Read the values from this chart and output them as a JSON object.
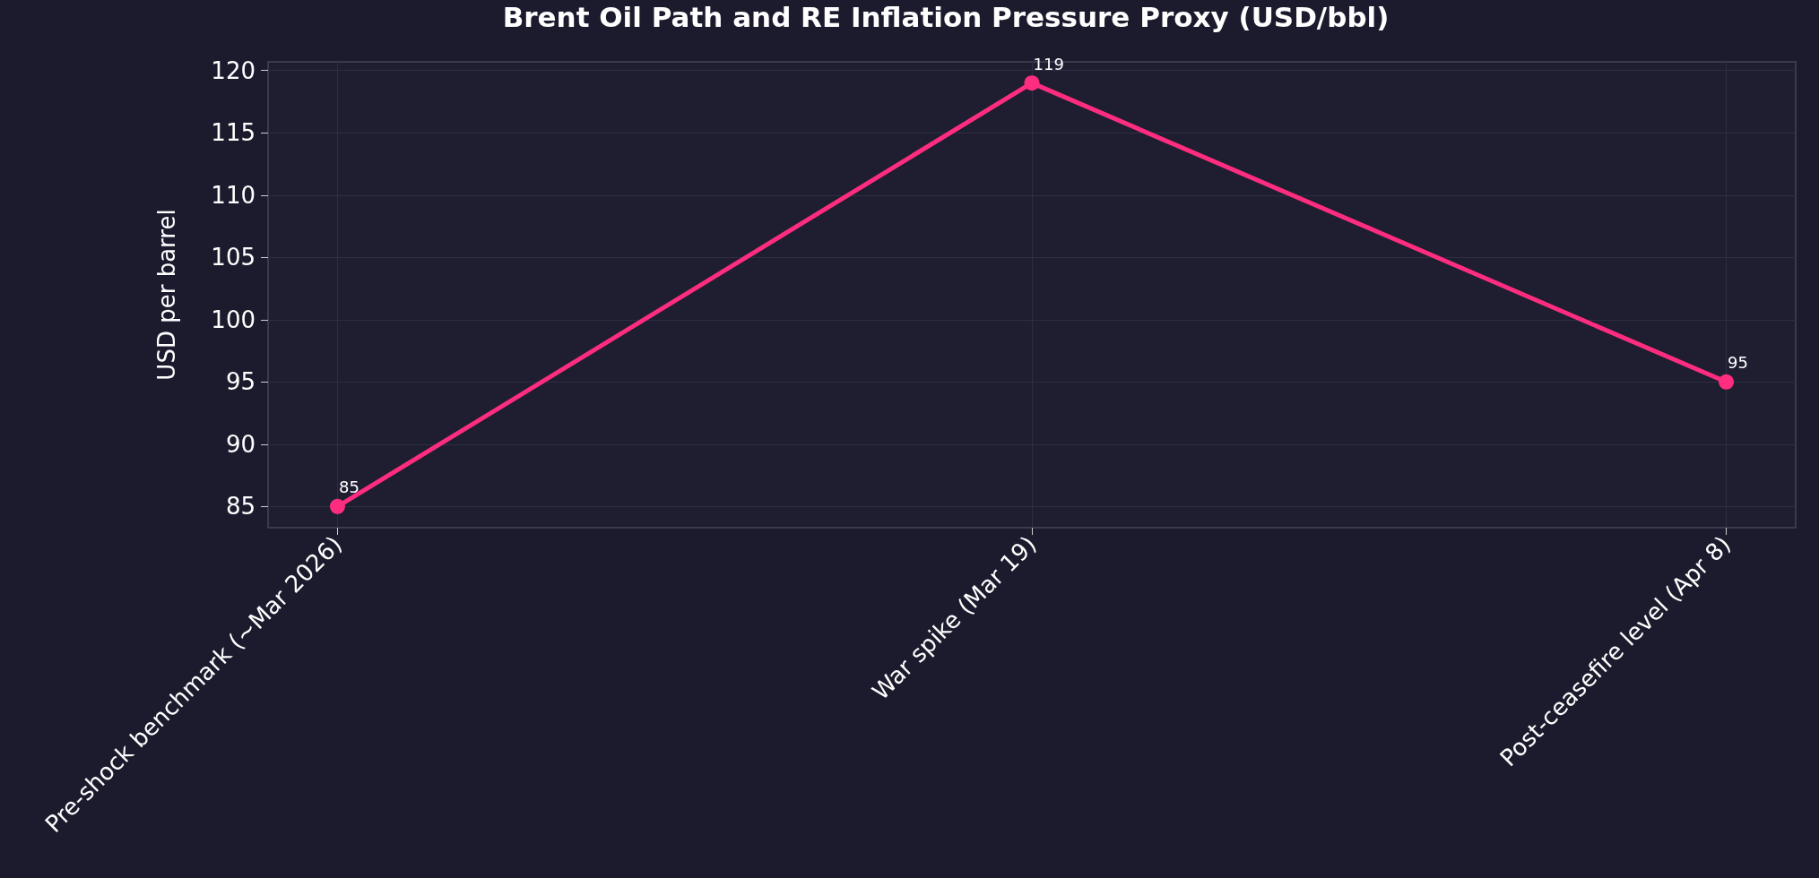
{
  "chart_data": {
    "type": "line",
    "title": "Brent Oil Path and RE Inflation Pressure Proxy (USD/bbl)",
    "ylabel": "USD per barrel",
    "categories": [
      "Pre-shock benchmark (~Mar 2026)",
      "War spike (Mar 19)",
      "Post-ceasefire level (Apr 8)"
    ],
    "series": [
      {
        "color": "#ff2d7f",
        "values": [
          85,
          119,
          95
        ]
      }
    ],
    "ylim": [
      83.3,
      120.7
    ],
    "yticks": [
      85,
      90,
      95,
      100,
      105,
      110,
      115,
      120
    ],
    "data_labels": true,
    "grid": true,
    "marker": "circle",
    "line_style": "solid"
  }
}
